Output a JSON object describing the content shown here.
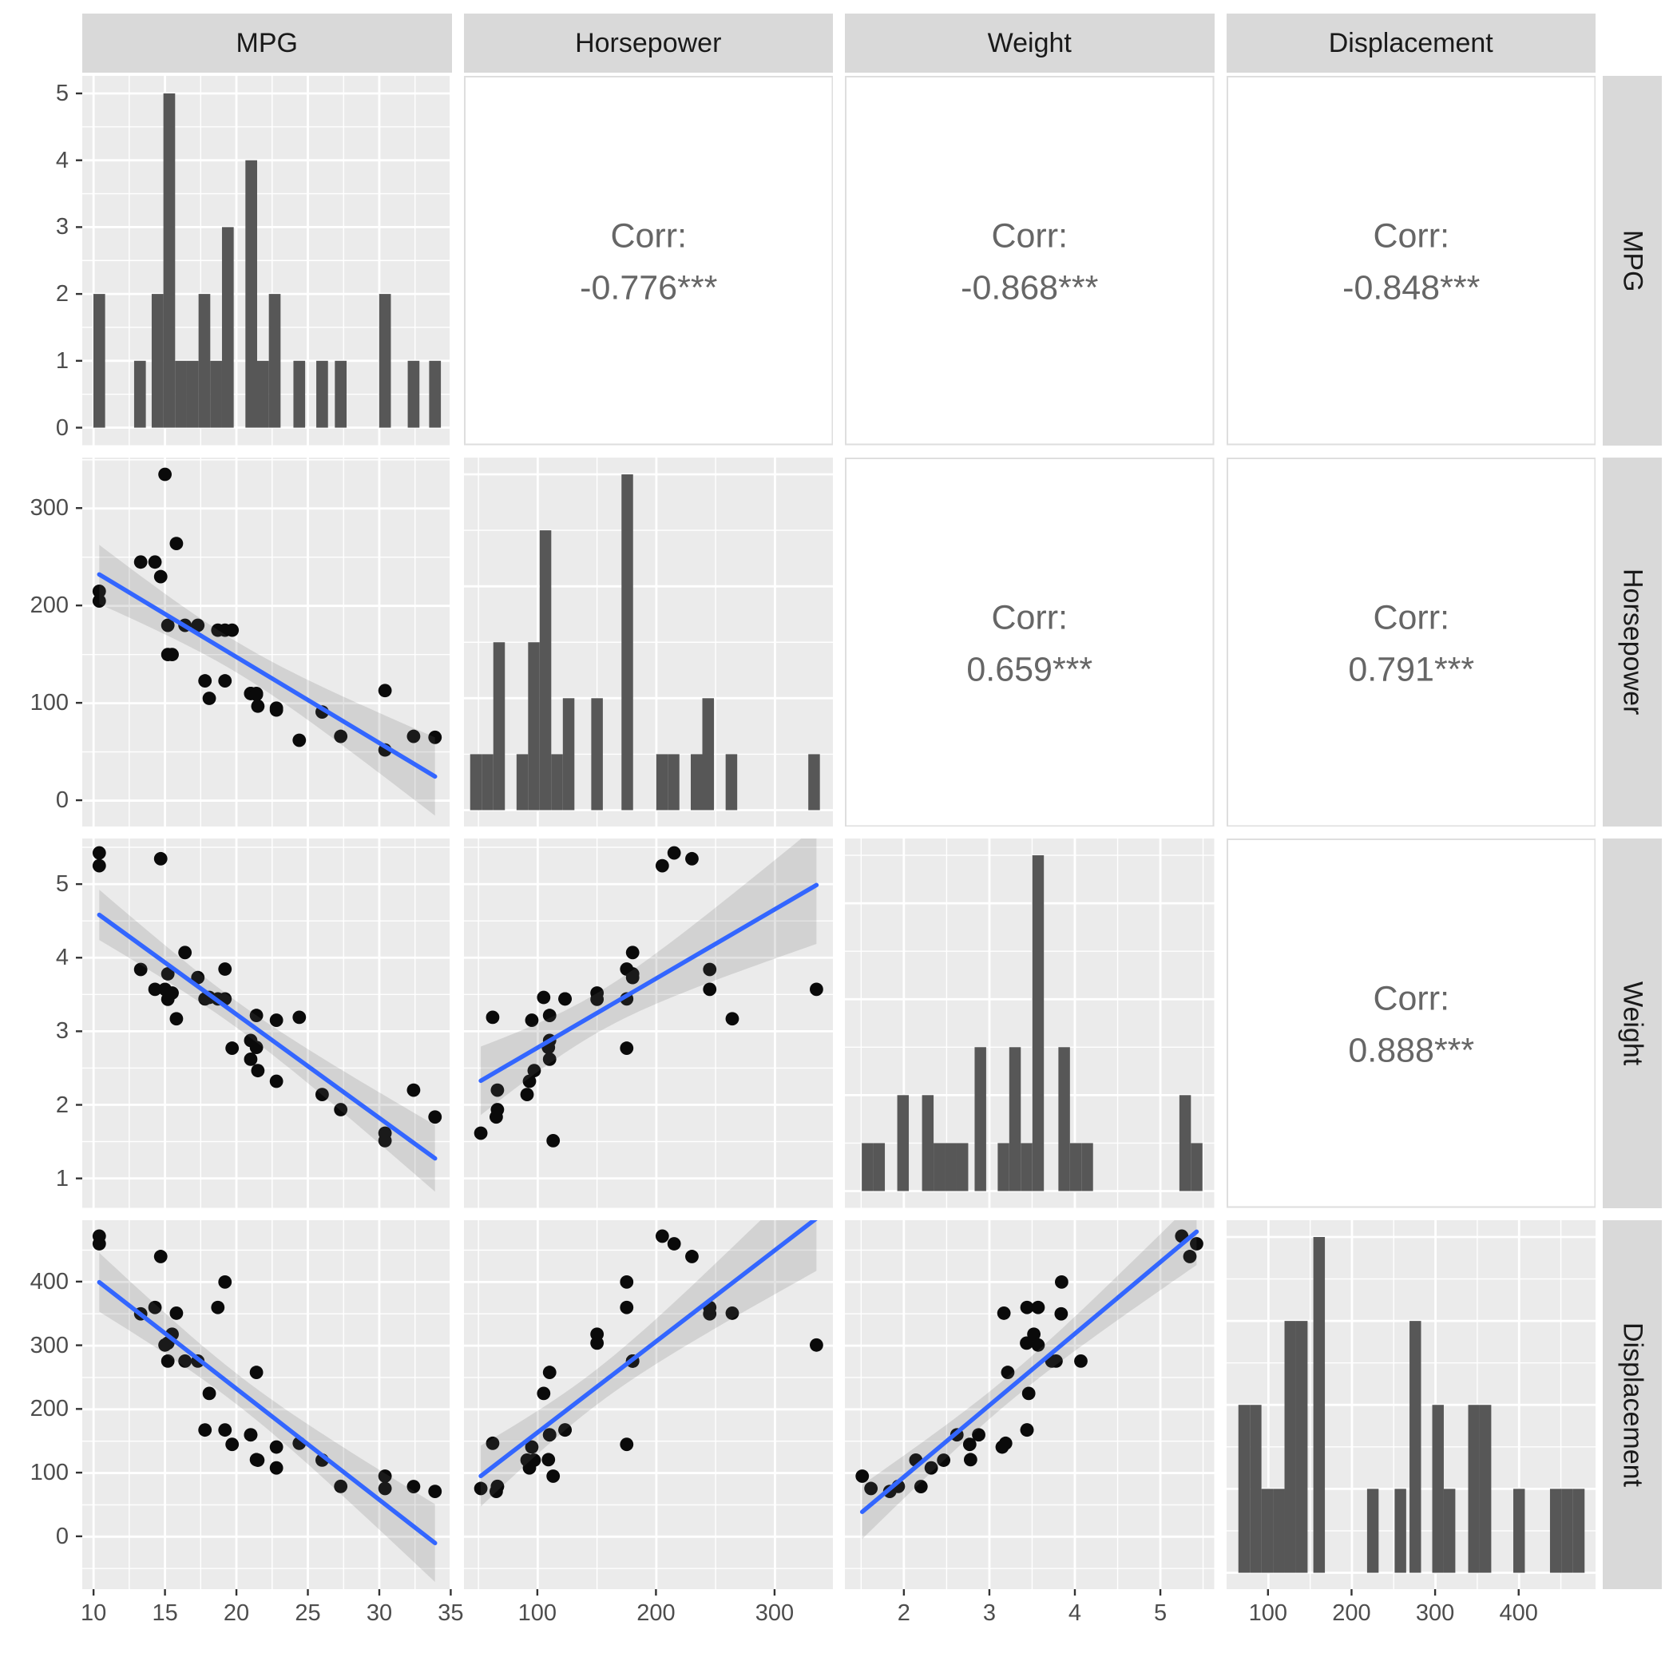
{
  "chart_data": {
    "type": "scatterplot-matrix",
    "title": "",
    "variables": [
      "MPG",
      "Horsepower",
      "Weight",
      "Displacement"
    ],
    "keys": [
      "mpg",
      "hp",
      "wt",
      "disp"
    ],
    "n_points": 32,
    "points": {
      "mpg": [
        21,
        21,
        22.8,
        21.4,
        18.7,
        18.1,
        14.3,
        24.4,
        22.8,
        19.2,
        17.8,
        16.4,
        17.3,
        15.2,
        10.4,
        10.4,
        14.7,
        32.4,
        30.4,
        33.9,
        21.5,
        15.5,
        15.2,
        13.3,
        19.2,
        27.3,
        26,
        30.4,
        15.8,
        19.7,
        15,
        21.4
      ],
      "hp": [
        110,
        110,
        93,
        110,
        175,
        105,
        245,
        62,
        95,
        123,
        123,
        180,
        180,
        180,
        205,
        215,
        230,
        66,
        52,
        65,
        97,
        150,
        150,
        245,
        175,
        66,
        91,
        113,
        264,
        175,
        335,
        109
      ],
      "wt": [
        2.62,
        2.875,
        2.32,
        3.215,
        3.44,
        3.46,
        3.57,
        3.19,
        3.15,
        3.44,
        3.44,
        4.07,
        3.73,
        3.78,
        5.25,
        5.424,
        5.345,
        2.2,
        1.615,
        1.835,
        2.465,
        3.52,
        3.435,
        3.84,
        3.845,
        1.935,
        2.14,
        1.513,
        3.17,
        2.77,
        3.57,
        2.78
      ],
      "disp": [
        160,
        160,
        108,
        258,
        360,
        225,
        360,
        146.7,
        140.8,
        167.6,
        167.6,
        275.8,
        275.8,
        275.8,
        472,
        460,
        440,
        78.7,
        75.7,
        71.1,
        120.1,
        318,
        304,
        350,
        400,
        79,
        120.3,
        95.1,
        351,
        145,
        301,
        121
      ]
    },
    "correlations": {
      "label": "Corr:",
      "cells": [
        {
          "row": 0,
          "col": 1,
          "pair": "MPG-Horsepower",
          "value": "-0.776***"
        },
        {
          "row": 0,
          "col": 2,
          "pair": "MPG-Weight",
          "value": "-0.868***"
        },
        {
          "row": 0,
          "col": 3,
          "pair": "MPG-Displacement",
          "value": "-0.848***"
        },
        {
          "row": 1,
          "col": 2,
          "pair": "Horsepower-Weight",
          "value": "0.659***"
        },
        {
          "row": 1,
          "col": 3,
          "pair": "Horsepower-Displacement",
          "value": "0.791***"
        },
        {
          "row": 2,
          "col": 3,
          "pair": "Weight-Displacement",
          "value": "0.888***"
        }
      ]
    },
    "histograms": {
      "mpg": {
        "binwidth": 0.82,
        "bars": [
          [
            10.4,
            2
          ],
          [
            13.25,
            1
          ],
          [
            14.48,
            2
          ],
          [
            15.3,
            5
          ],
          [
            16.12,
            1
          ],
          [
            16.94,
            1
          ],
          [
            17.76,
            2
          ],
          [
            18.58,
            1
          ],
          [
            19.4,
            3
          ],
          [
            21.04,
            4
          ],
          [
            21.86,
            1
          ],
          [
            22.68,
            2
          ],
          [
            24.4,
            1
          ],
          [
            26,
            1
          ],
          [
            27.3,
            1
          ],
          [
            30.4,
            2
          ],
          [
            32.4,
            1
          ],
          [
            33.9,
            1
          ]
        ]
      },
      "hp": {
        "binwidth": 9.76,
        "bars": [
          [
            47.9,
            1
          ],
          [
            57.66,
            1
          ],
          [
            67.42,
            3
          ],
          [
            87,
            1
          ],
          [
            96.76,
            3
          ],
          [
            106.52,
            5
          ],
          [
            116.28,
            1
          ],
          [
            126.04,
            2
          ],
          [
            150,
            2
          ],
          [
            175.5,
            6
          ],
          [
            204.8,
            1
          ],
          [
            214.56,
            1
          ],
          [
            233.9,
            1
          ],
          [
            243.66,
            2
          ],
          [
            263.3,
            1
          ],
          [
            333,
            1
          ]
        ]
      },
      "wt": {
        "binwidth": 0.135,
        "bars": [
          [
            1.575,
            1
          ],
          [
            1.71,
            1
          ],
          [
            1.99,
            2
          ],
          [
            2.28,
            2
          ],
          [
            2.415,
            1
          ],
          [
            2.55,
            1
          ],
          [
            2.685,
            1
          ],
          [
            2.895,
            3
          ],
          [
            3.165,
            1
          ],
          [
            3.3,
            3
          ],
          [
            3.435,
            1
          ],
          [
            3.57,
            7
          ],
          [
            3.875,
            3
          ],
          [
            4.01,
            1
          ],
          [
            4.145,
            1
          ],
          [
            5.29,
            2
          ],
          [
            5.425,
            1
          ]
        ]
      },
      "disp": {
        "binwidth": 13.8,
        "bars": [
          [
            71,
            2
          ],
          [
            84.8,
            2
          ],
          [
            98.6,
            1
          ],
          [
            112.4,
            1
          ],
          [
            126.2,
            3
          ],
          [
            140,
            3
          ],
          [
            160.7,
            4
          ],
          [
            225,
            1
          ],
          [
            258,
            1
          ],
          [
            275.8,
            3
          ],
          [
            303,
            2
          ],
          [
            316.8,
            1
          ],
          [
            346,
            2
          ],
          [
            359.8,
            2
          ],
          [
            400,
            1
          ],
          [
            443.9,
            1
          ],
          [
            457.7,
            1
          ],
          [
            471.5,
            1
          ]
        ]
      }
    },
    "axes": {
      "columns": [
        {
          "var": "MPG",
          "domain": [
            9.21,
            35.06
          ],
          "majors": [
            10,
            15,
            20,
            25,
            30,
            35
          ],
          "minors": [
            12.5,
            17.5,
            22.5,
            27.5,
            32.5
          ]
        },
        {
          "var": "Horsepower",
          "domain": [
            37.8,
            349.2
          ],
          "majors": [
            100,
            200,
            300
          ],
          "minors": [
            50,
            150,
            250
          ]
        },
        {
          "var": "Weight",
          "domain": [
            1.31,
            5.63
          ],
          "majors": [
            2,
            3,
            4,
            5
          ],
          "minors": [
            1.5,
            2.5,
            3.5,
            4.5,
            5.5
          ]
        },
        {
          "var": "Displacement",
          "domain": [
            50,
            492
          ],
          "majors": [
            100,
            200,
            300,
            400
          ],
          "minors": [
            150,
            250,
            350,
            450
          ]
        }
      ],
      "rows": [
        {
          "var": "MPG (count)",
          "domain": [
            -0.2625,
            5.2625
          ],
          "majors": [
            0,
            1,
            2,
            3,
            4,
            5
          ],
          "minors": [
            0.5,
            1.5,
            2.5,
            3.5,
            4.5
          ]
        },
        {
          "var": "Horsepower",
          "domain": [
            -27,
            352.25
          ],
          "majors": [
            0,
            100,
            200,
            300
          ],
          "minors": [
            50,
            150,
            250,
            350
          ]
        },
        {
          "var": "Weight",
          "domain": [
            0.6,
            5.62
          ],
          "majors": [
            1,
            2,
            3,
            4,
            5
          ],
          "minors": [
            1.5,
            2.5,
            3.5,
            4.5,
            5.5
          ]
        },
        {
          "var": "Displacement",
          "domain": [
            -83,
            497
          ],
          "majors": [
            0,
            100,
            200,
            300,
            400
          ],
          "minors": [
            -50,
            50,
            150,
            250,
            350,
            450
          ]
        }
      ],
      "hist_y": [
        {
          "domain": [
            -0.2625,
            5.2625
          ],
          "majors": [
            0,
            1,
            2,
            3,
            4,
            5
          ],
          "minors": [
            0.5,
            1.5,
            2.5,
            3.5,
            4.5
          ]
        },
        {
          "domain": [
            -0.3,
            6.3
          ],
          "majors": [
            0,
            2,
            4,
            6
          ],
          "minors": [
            1,
            3,
            5
          ]
        },
        {
          "domain": [
            -0.35,
            7.35
          ],
          "majors": [
            0,
            2,
            4,
            6
          ],
          "minors": [
            1,
            3,
            5,
            7
          ]
        },
        {
          "domain": [
            -0.2,
            4.2
          ],
          "majors": [
            0,
            1,
            2,
            3,
            4
          ],
          "minors": [
            0.5,
            1.5,
            2.5,
            3.5
          ]
        }
      ]
    },
    "smoother": {
      "method": "lm",
      "ci_level": 0.95,
      "t_crit": 2.042
    }
  },
  "style": {
    "panel_bg": "#ebebeb",
    "grid_major": "#ffffff",
    "grid_minor": "#ffffff",
    "strip_bg": "#d9d9d9",
    "strip_text": "#1a1a1a",
    "axis_text": "#4d4d4d",
    "tick_mark": "#333333",
    "bar_fill": "#575757",
    "point_fill": "#0a0a0a",
    "smooth_line": "#3366ff",
    "ribbon_fill": "rgba(100,100,100,0.18)",
    "corr_text": "#666666",
    "corr_border": "#dedede",
    "corr_bg": "#ffffff"
  }
}
